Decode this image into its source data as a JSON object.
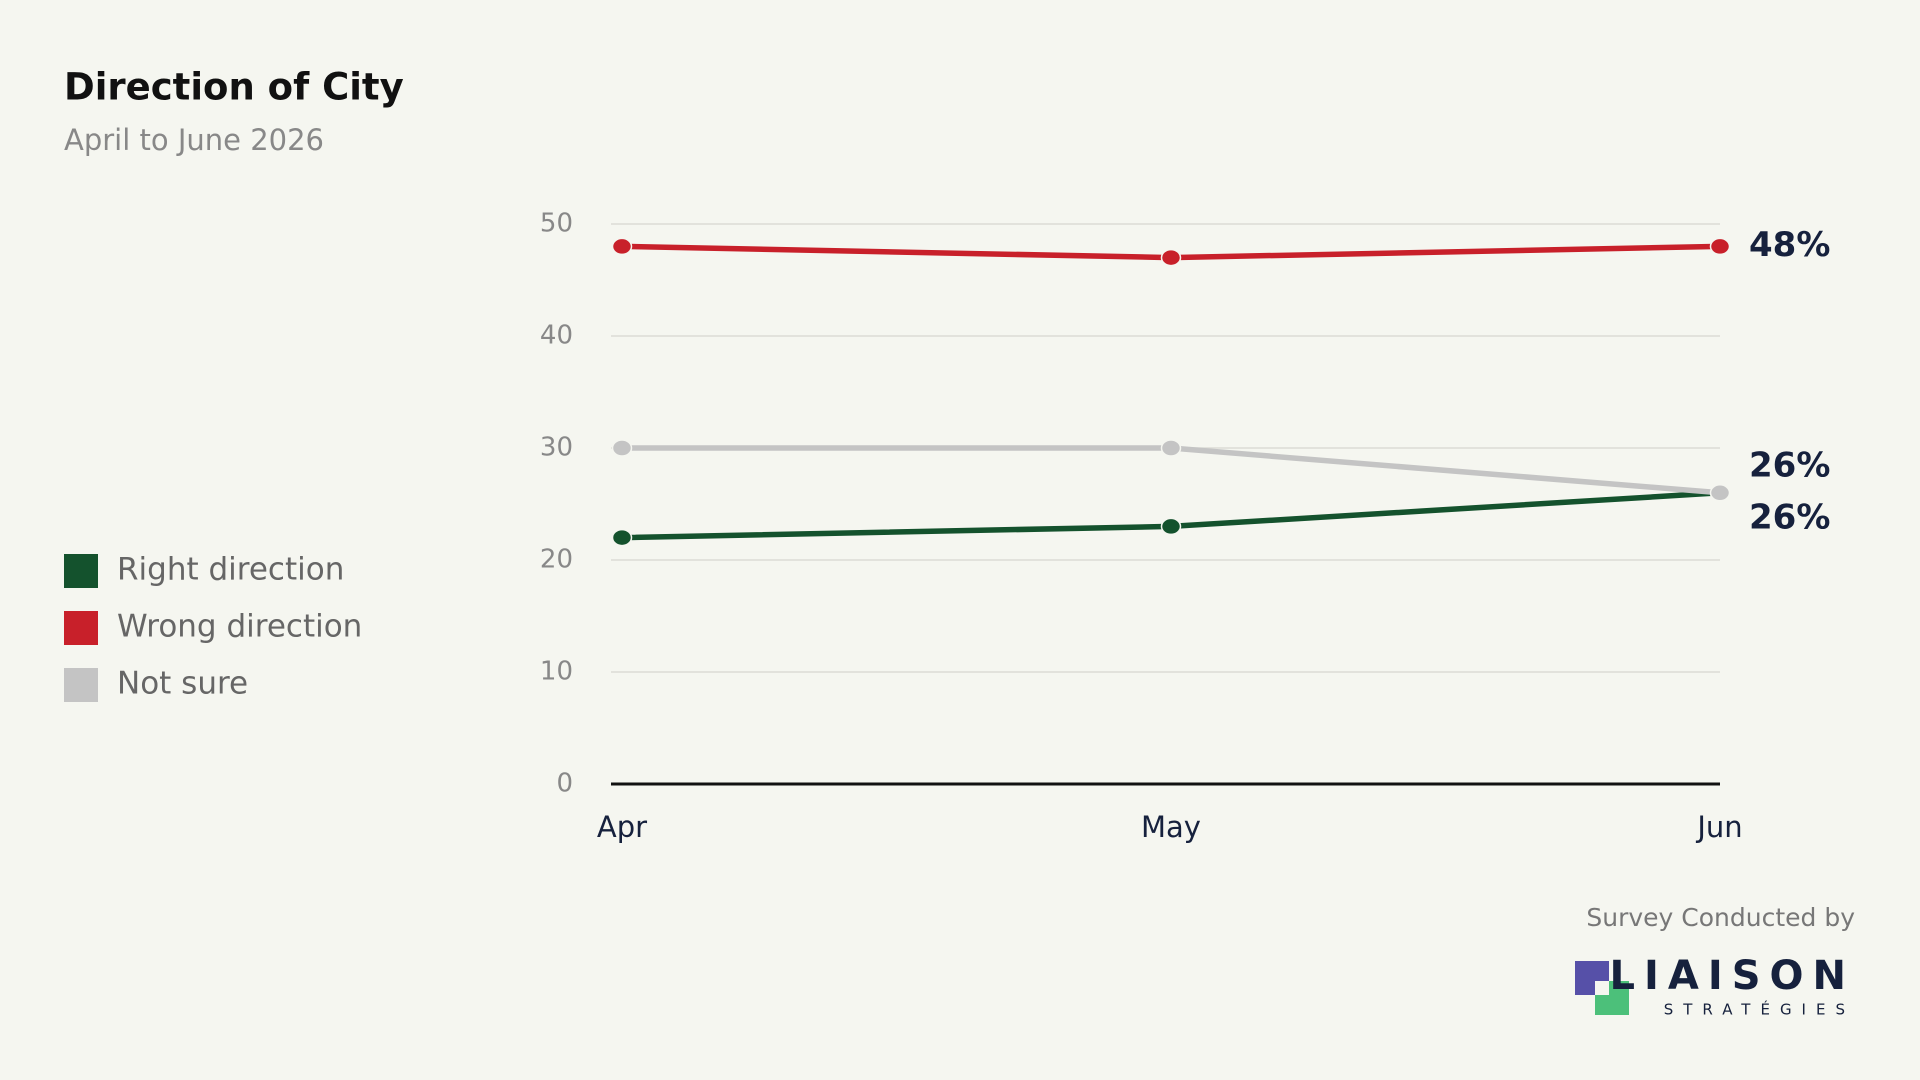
{
  "chart_data": {
    "type": "line",
    "title": "Direction of City",
    "subtitle": "April to June 2026",
    "categories": [
      "Apr",
      "May",
      "Jun"
    ],
    "series": [
      {
        "name": "Right direction",
        "color": "#14522d",
        "values": [
          22,
          23,
          26
        ],
        "value_labels": [
          null,
          null,
          "26%"
        ]
      },
      {
        "name": "Wrong direction",
        "color": "#c8202a",
        "values": [
          48,
          47,
          48
        ],
        "value_labels": [
          null,
          null,
          "48%"
        ]
      },
      {
        "name": "Not sure",
        "color": "#c4c4c4",
        "values": [
          30,
          30,
          26
        ],
        "value_labels": [
          null,
          null,
          "26%"
        ]
      }
    ],
    "ylim": [
      0,
      50
    ],
    "yticks": [
      0,
      10,
      20,
      30,
      40,
      50
    ],
    "grid": true
  },
  "source": "Survey Conducted by",
  "logo": {
    "name": "LIAISON",
    "tagline": "STRATÉGIES"
  }
}
